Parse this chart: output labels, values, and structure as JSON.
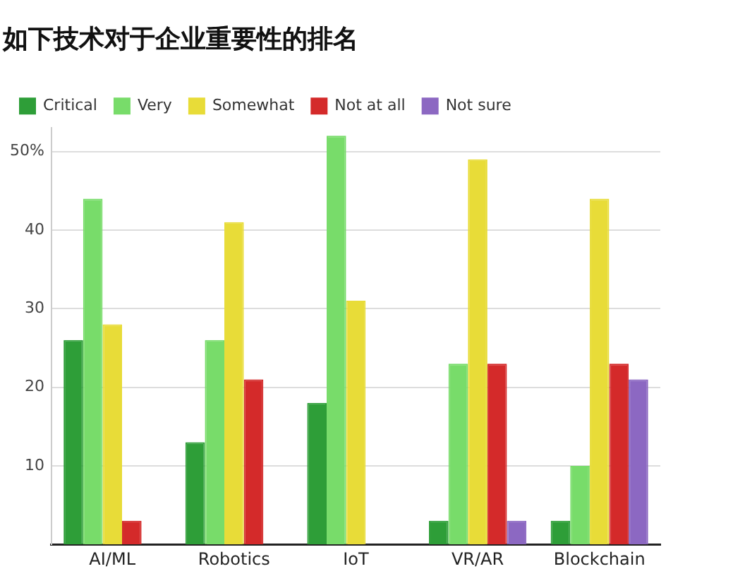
{
  "chart_data": {
    "type": "bar",
    "title": "如下技术对于企业重要性的排名",
    "categories": [
      "AI/ML",
      "Robotics",
      "IoT",
      "VR/AR",
      "Blockchain"
    ],
    "series": [
      {
        "name": "Critical",
        "color": "#2e9e38",
        "values": [
          26,
          13,
          18,
          3,
          3
        ]
      },
      {
        "name": "Very",
        "color": "#78dc6a",
        "values": [
          44,
          26,
          52,
          23,
          10
        ]
      },
      {
        "name": "Somewhat",
        "color": "#e8dc38",
        "values": [
          28,
          41,
          31,
          49,
          44
        ]
      },
      {
        "name": "Not at all",
        "color": "#d42a2a",
        "values": [
          3,
          21,
          null,
          23,
          23
        ]
      },
      {
        "name": "Not sure",
        "color": "#8c68c2",
        "values": [
          null,
          null,
          null,
          3,
          21
        ]
      }
    ],
    "ylim": [
      0,
      53
    ],
    "yticks": [
      10,
      20,
      30,
      40,
      {
        "value": 50,
        "label": "50%"
      }
    ],
    "grid": "y",
    "legend": "top left"
  }
}
